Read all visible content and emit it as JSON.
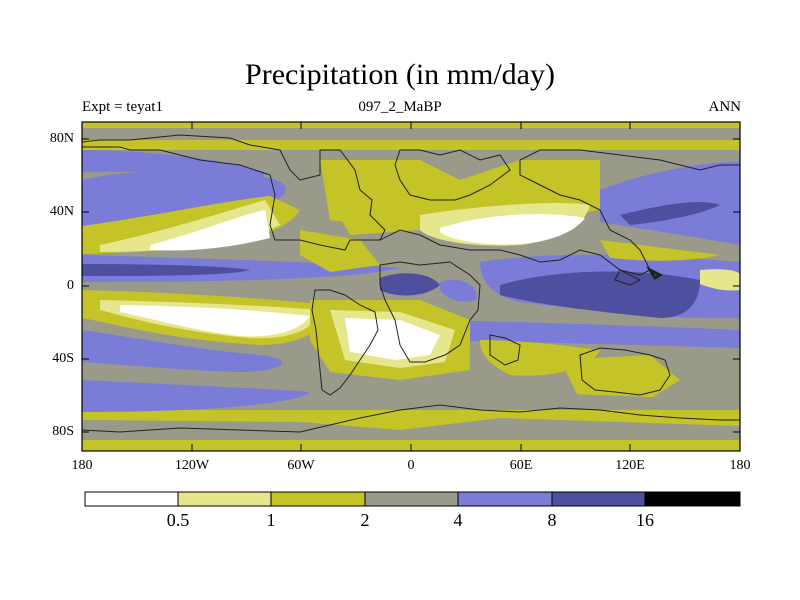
{
  "title": "Precipitation (in mm/day)",
  "subtitle_left": "Expt = teyat1",
  "subtitle_center": "097_2_MaBP",
  "subtitle_right": "ANN",
  "y_ticks": [
    {
      "lat": 80,
      "label": "80N"
    },
    {
      "lat": 40,
      "label": "40N"
    },
    {
      "lat": 0,
      "label": "0"
    },
    {
      "lat": -40,
      "label": "40S"
    },
    {
      "lat": -80,
      "label": "80S"
    }
  ],
  "x_ticks": [
    {
      "lon": -180,
      "label": "180"
    },
    {
      "lon": -120,
      "label": "120W"
    },
    {
      "lon": -60,
      "label": "60W"
    },
    {
      "lon": 0,
      "label": "0"
    },
    {
      "lon": 60,
      "label": "60E"
    },
    {
      "lon": 120,
      "label": "120E"
    },
    {
      "lon": 180,
      "label": "180"
    }
  ],
  "colorbar": {
    "levels": [
      "0.5",
      "1",
      "2",
      "4",
      "8",
      "16"
    ],
    "colors": [
      "#ffffff",
      "#e6e68c",
      "#c4c328",
      "#9a9a8a",
      "#7b7bd8",
      "#4f4fa0",
      "#000000"
    ]
  },
  "map_colors": {
    "white": "#ffffff",
    "light_yellow": "#e6e68c",
    "olive": "#c4c328",
    "gray": "#9a9a8a",
    "blue": "#7b7bd8",
    "dark_blue": "#4f4fa0",
    "coast": "#222222"
  }
}
